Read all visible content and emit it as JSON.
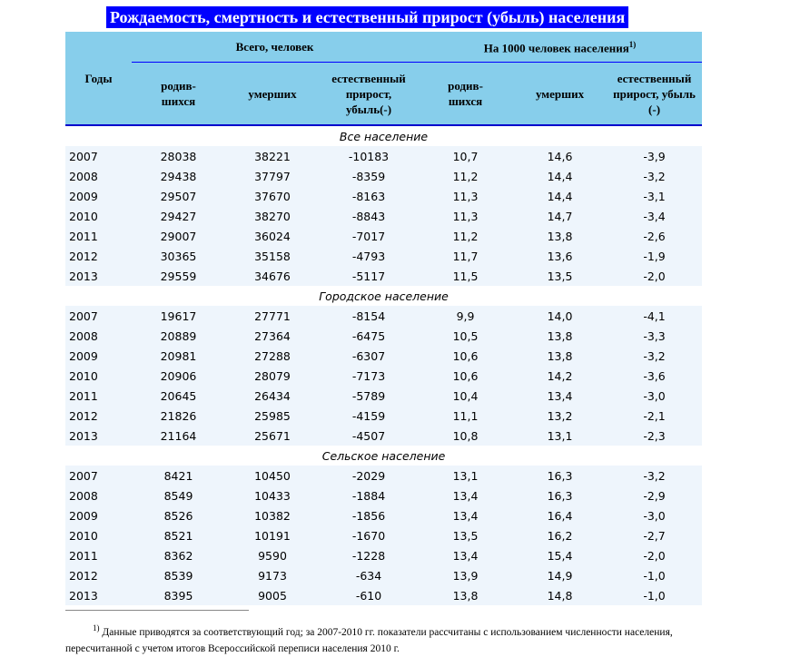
{
  "title": "Рождаемость, смертность и естественный прирост (убыль) населения",
  "header": {
    "years": "Годы",
    "group_total": "Всего, человек",
    "group_per1000": "На 1000 человек населения",
    "group_per1000_note": "1)",
    "cols": [
      "родив-шихся",
      "умерших",
      "естественный прирост, убыль(-)",
      "родив-шихся",
      "умерших",
      "естественный прирост, убыль (-)"
    ]
  },
  "sections": [
    {
      "label": "Все население",
      "rows": [
        [
          "2007",
          "28038",
          "38221",
          "-10183",
          "10,7",
          "14,6",
          "-3,9"
        ],
        [
          "2008",
          "29438",
          "37797",
          "-8359",
          "11,2",
          "14,4",
          "-3,2"
        ],
        [
          "2009",
          "29507",
          "37670",
          "-8163",
          "11,3",
          "14,4",
          "-3,1"
        ],
        [
          "2010",
          "29427",
          "38270",
          "-8843",
          "11,3",
          "14,7",
          "-3,4"
        ],
        [
          "2011",
          "29007",
          "36024",
          "-7017",
          "11,2",
          "13,8",
          "-2,6"
        ],
        [
          "2012",
          "30365",
          "35158",
          "-4793",
          "11,7",
          "13,6",
          "-1,9"
        ],
        [
          "2013",
          "29559",
          "34676",
          "-5117",
          "11,5",
          "13,5",
          "-2,0"
        ]
      ]
    },
    {
      "label": "Городское население",
      "rows": [
        [
          "2007",
          "19617",
          "27771",
          "-8154",
          "9,9",
          "14,0",
          "-4,1"
        ],
        [
          "2008",
          "20889",
          "27364",
          "-6475",
          "10,5",
          "13,8",
          "-3,3"
        ],
        [
          "2009",
          "20981",
          "27288",
          "-6307",
          "10,6",
          "13,8",
          "-3,2"
        ],
        [
          "2010",
          "20906",
          "28079",
          "-7173",
          "10,6",
          "14,2",
          "-3,6"
        ],
        [
          "2011",
          "20645",
          "26434",
          "-5789",
          "10,4",
          "13,4",
          "-3,0"
        ],
        [
          "2012",
          "21826",
          "25985",
          "-4159",
          "11,1",
          "13,2",
          "-2,1"
        ],
        [
          "2013",
          "21164",
          "25671",
          "-4507",
          "10,8",
          "13,1",
          "-2,3"
        ]
      ]
    },
    {
      "label": "Сельское население",
      "rows": [
        [
          "2007",
          "8421",
          "10450",
          "-2029",
          "13,1",
          "16,3",
          "-3,2"
        ],
        [
          "2008",
          "8549",
          "10433",
          "-1884",
          "13,4",
          "16,3",
          "-2,9"
        ],
        [
          "2009",
          "8526",
          "10382",
          "-1856",
          "13,4",
          "16,4",
          "-3,0"
        ],
        [
          "2010",
          "8521",
          "10191",
          "-1670",
          "13,5",
          "16,2",
          "-2,7"
        ],
        [
          "2011",
          "8362",
          "9590",
          "-1228",
          "13,4",
          "15,4",
          "-2,0"
        ],
        [
          "2012",
          "8539",
          "9173",
          "-634",
          "13,9",
          "14,9",
          "-1,0"
        ],
        [
          "2013",
          "8395",
          "9005",
          "-610",
          "13,8",
          "14,8",
          "-1,0"
        ]
      ]
    }
  ],
  "footnote": {
    "mark": "1)",
    "text": "Данные приводятся за соответствующий год; за 2007-2010 гг. показатели рассчитаны с использованием численности населения, пересчитанной с учетом итогов Всероссийской переписи населения 2010 г."
  }
}
